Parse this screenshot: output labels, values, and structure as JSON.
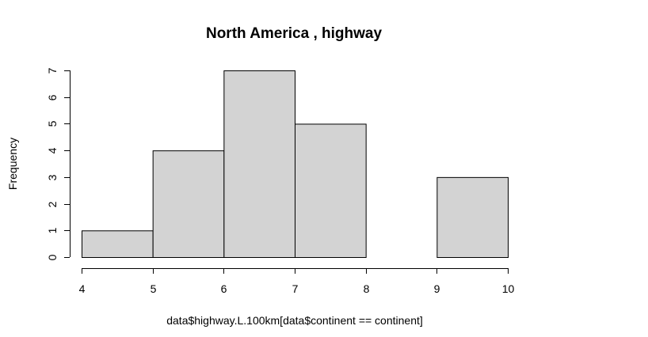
{
  "chart_data": {
    "type": "bar",
    "title": "North America , highway",
    "xlabel": "data$highway.L.100km[data$continent == continent]",
    "ylabel": "Frequency",
    "bins": [
      {
        "from": 4,
        "to": 5,
        "count": 1
      },
      {
        "from": 5,
        "to": 6,
        "count": 4
      },
      {
        "from": 6,
        "to": 7,
        "count": 7
      },
      {
        "from": 7,
        "to": 8,
        "count": 5
      },
      {
        "from": 8,
        "to": 9,
        "count": 0
      },
      {
        "from": 9,
        "to": 10,
        "count": 3
      }
    ],
    "xlim": [
      4,
      10
    ],
    "ylim": [
      0,
      7
    ],
    "x_ticks": [
      "4",
      "5",
      "6",
      "7",
      "8",
      "9",
      "10"
    ],
    "y_ticks": [
      "0",
      "1",
      "2",
      "3",
      "4",
      "5",
      "6",
      "7"
    ],
    "grid": false,
    "bar_fill": "#d3d3d3",
    "bar_stroke": "#000000"
  }
}
